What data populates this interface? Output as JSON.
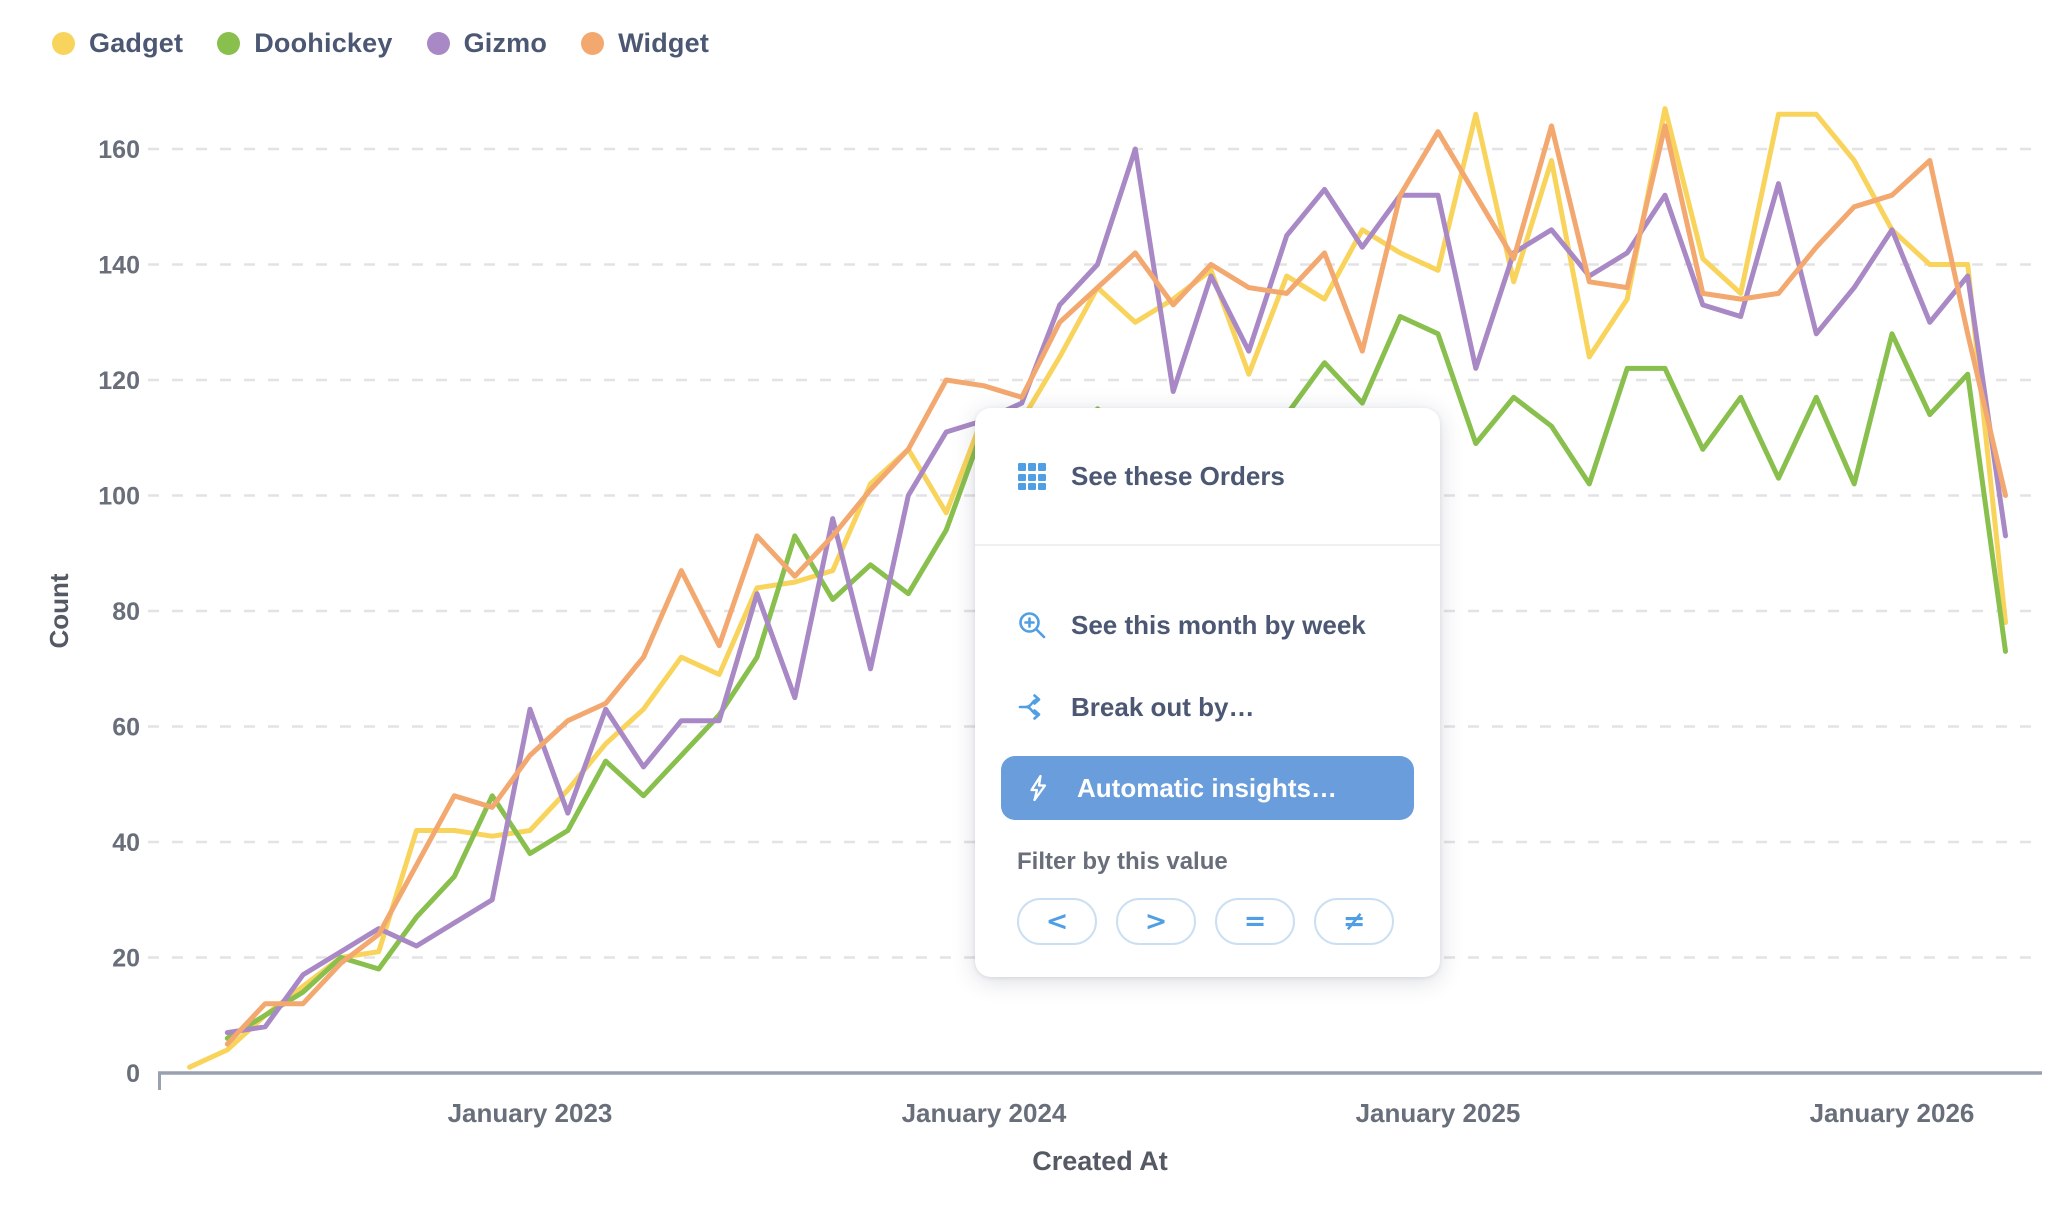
{
  "colors": {
    "brand_blue": "#509EE3",
    "insights_button_bg": "#699DDB",
    "pill_border": "#CBDFF3",
    "menu_text": "#4C5773",
    "muted_text": "#696E7B",
    "axis_line": "#99A0B0",
    "gridline": "#E3E3E6"
  },
  "context_menu": {
    "see_records": {
      "label": "See these Orders",
      "icon": "table-grid-icon"
    },
    "drill_items": [
      {
        "label": "See this month by week",
        "icon": "zoom-in-icon"
      },
      {
        "label": "Break out by…",
        "icon": "breakout-split-icon"
      }
    ],
    "primary_action": {
      "label": "Automatic insights…",
      "icon": "insights-bolt-icon"
    },
    "filter_section": {
      "label": "Filter by this value",
      "operators": [
        "<",
        ">",
        "=",
        "≠"
      ]
    }
  },
  "chart_data": {
    "type": "line",
    "title": "",
    "xlabel": "Created At",
    "ylabel": "Count",
    "ylim": [
      0,
      160
    ],
    "y_ticks": [
      0,
      20,
      40,
      60,
      80,
      100,
      120,
      140,
      160
    ],
    "x_ticks": [
      {
        "month": "2023-01",
        "label": "January 2023"
      },
      {
        "month": "2024-01",
        "label": "January 2024"
      },
      {
        "month": "2025-01",
        "label": "January 2025"
      },
      {
        "month": "2026-01",
        "label": "January 2026"
      }
    ],
    "grid": "dashed-horizontal",
    "legend_position": "top-left",
    "months": [
      "2022-04",
      "2022-05",
      "2022-06",
      "2022-07",
      "2022-08",
      "2022-09",
      "2022-10",
      "2022-11",
      "2022-12",
      "2023-01",
      "2023-02",
      "2023-03",
      "2023-04",
      "2023-05",
      "2023-06",
      "2023-07",
      "2023-08",
      "2023-09",
      "2023-10",
      "2023-11",
      "2023-12",
      "2024-01",
      "2024-02",
      "2024-03",
      "2024-04",
      "2024-05",
      "2024-06",
      "2024-07",
      "2024-08",
      "2024-09",
      "2024-10",
      "2024-11",
      "2024-12",
      "2025-01",
      "2025-02",
      "2025-03",
      "2025-04",
      "2025-05",
      "2025-06",
      "2025-07",
      "2025-08",
      "2025-09",
      "2025-10",
      "2025-11",
      "2025-12",
      "2026-01",
      "2026-02",
      "2026-03",
      "2026-04"
    ],
    "series": [
      {
        "name": "Gadget",
        "color": "#F9D45C",
        "values": [
          1,
          4,
          10,
          15,
          20,
          21,
          42,
          42,
          41,
          42,
          49,
          57,
          63,
          72,
          69,
          84,
          85,
          87,
          102,
          108,
          97,
          114,
          113,
          124,
          136,
          130,
          134,
          139,
          121,
          138,
          134,
          146,
          142,
          139,
          166,
          137,
          158,
          124,
          134,
          167,
          141,
          135,
          166,
          166,
          158,
          146,
          140,
          140,
          78
        ]
      },
      {
        "name": "Doohickey",
        "color": "#88BF4D",
        "values": [
          null,
          6,
          10,
          14,
          20,
          18,
          27,
          34,
          48,
          38,
          42,
          54,
          48,
          55,
          62,
          72,
          93,
          82,
          88,
          83,
          94,
          112,
          113,
          108,
          115,
          110,
          104,
          112,
          107,
          114,
          123,
          116,
          131,
          128,
          109,
          117,
          112,
          102,
          122,
          122,
          108,
          117,
          103,
          117,
          102,
          128,
          114,
          121,
          73
        ]
      },
      {
        "name": "Gizmo",
        "color": "#A989C5",
        "values": [
          null,
          7,
          8,
          17,
          21,
          25,
          22,
          26,
          30,
          63,
          45,
          63,
          53,
          61,
          61,
          83,
          65,
          96,
          70,
          100,
          111,
          113,
          116,
          133,
          140,
          160,
          118,
          138,
          125,
          145,
          153,
          143,
          152,
          152,
          122,
          142,
          146,
          138,
          142,
          152,
          133,
          131,
          154,
          128,
          136,
          146,
          130,
          138,
          93
        ]
      },
      {
        "name": "Widget",
        "color": "#F2A86F",
        "values": [
          null,
          5,
          12,
          12,
          19,
          24,
          36,
          48,
          46,
          55,
          61,
          64,
          72,
          87,
          74,
          93,
          86,
          93,
          101,
          108,
          120,
          119,
          117,
          130,
          136,
          142,
          133,
          140,
          136,
          135,
          142,
          125,
          152,
          163,
          152,
          141,
          164,
          137,
          136,
          164,
          135,
          134,
          135,
          143,
          150,
          152,
          158,
          128,
          100
        ]
      }
    ]
  }
}
